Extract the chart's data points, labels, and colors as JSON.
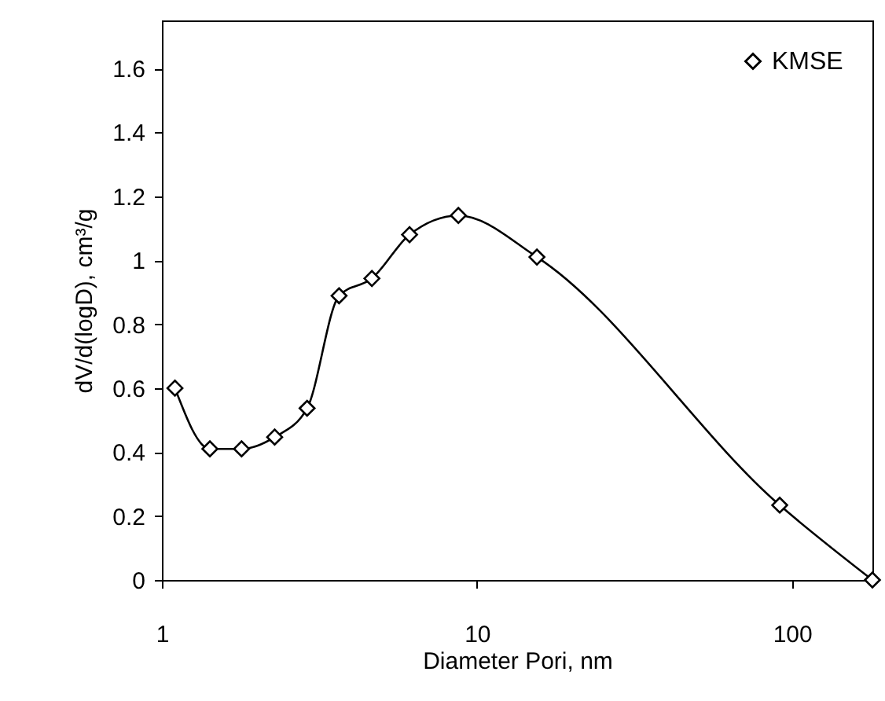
{
  "chart_data": {
    "type": "line",
    "xlabel": "Diameter Pori, nm",
    "ylabel": "dV/d(logD), cm³/g",
    "log": "x",
    "xlim": [
      1,
      180
    ],
    "xticks": [
      1,
      10,
      100
    ],
    "ylim": [
      0,
      1.75
    ],
    "yticks": [
      0,
      0.2,
      0.4,
      0.6,
      0.8,
      1,
      1.2,
      1.4,
      1.6
    ],
    "grid": false,
    "legend": "top right",
    "marker": "diamond",
    "line_style": "solid",
    "x": [
      1.1,
      1.42,
      1.79,
      2.28,
      2.89,
      3.65,
      4.64,
      6.11,
      8.73,
      15.5,
      91.4,
      180
    ],
    "series": [
      {
        "name": "KMSE",
        "color": "#000000",
        "values": [
          0.6,
          0.41,
          0.41,
          0.447,
          0.537,
          0.889,
          0.943,
          1.08,
          1.14,
          1.01,
          0.234,
          0
        ]
      }
    ]
  }
}
